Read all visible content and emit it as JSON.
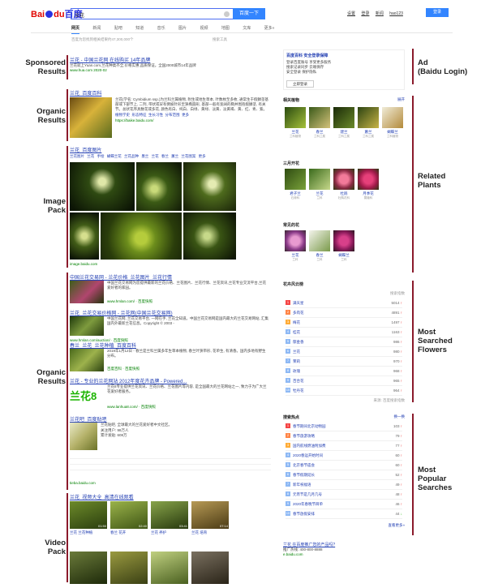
{
  "annotations": {
    "left": [
      "Sponsored\nResults",
      "Organic\nResults",
      "Image\nPack",
      "Organic\nResults",
      "Video\nPack"
    ],
    "right": [
      "Ad\n(Baidu Login)",
      "Related\nPlants",
      "Most\nSearched\nFlowers",
      "Most\nPopular\nSearches"
    ]
  },
  "header": {
    "logo_bai": "Bai",
    "logo_du": "du",
    "logo_cn": "百度",
    "query": "兰花",
    "search_button": "百度一下",
    "top_links": [
      "设置",
      "登录",
      "新闻",
      "hao123"
    ],
    "login": "登录"
  },
  "tabs": [
    "网页",
    "新闻",
    "贴吧",
    "知道",
    "音乐",
    "图片",
    "视频",
    "地图",
    "文库",
    "更多»"
  ],
  "stats": "百度为您找到相关结果约47,300,000个",
  "tools": "搜索工具",
  "sponsored": {
    "title": "兰花 - 中国兰花网 在线购买 14年品牌",
    "snippet": "兰花就上Yuan.com,兰花种类齐全,价格实惠,品质保证。全国2000城市14年品牌",
    "url": "www.hua.com  2020-02"
  },
  "organic1": {
    "title": "兰花_百度百科",
    "snippet": "兰花(学名: Cymbidium ssp.)为兰科兰属植物, 附生或地生草本, 叶数枚至多枚, 通常生于假鳞茎基部或下部节上, 二列, 带状或罕有倒披针形至狭椭圆形, 基部一般有宽阔的鞘并围抱假鳞茎, 有关节。总状花序具数花或多花, 颜色有白、纯白、白绿、黄绿、淡黄、淡黄褐、黄、红、青、紫。",
    "sublinks": [
      "植物学史",
      "形态特征",
      "生长习性",
      "分布范围",
      "更多"
    ],
    "url": "https://baike.baidu.com/"
  },
  "images": {
    "title": "兰花_百度图片",
    "tags": [
      "兰花图片",
      "兰花 手绘",
      "蝴蝶兰花",
      "兰花品种",
      "墨兰",
      "兰花",
      "春兰",
      "蕙兰",
      "兰花图案",
      "更多"
    ],
    "source": "image.baidu.com"
  },
  "organic2": [
    {
      "title": "中国兰花交易网 - 兰花价格_兰花图片_兰花行情",
      "snippet": "中国兰花交易网为您提供最新的兰花价格、兰花图片、兰花行情、兰花资讯,兰花专业交流平台,兰花爱好者的家园。",
      "url": "www.hmlan.com/  ·  百度快照"
    },
    {
      "title": "兰花_兰花交易价格网 - 兰花网(中国兰花交易网)",
      "snippet": "中国兰花网, 兰花交易平台, 一网在手, 兰花全知道。中国兰花交易网是国内最大的兰花交易网站, 汇集国内外最新兰花信息。Copyright © 2003 -",
      "url": "www.hmlan.com/auction/  ·  百度快照"
    },
    {
      "title": "春兰_兰花_兰花种植_百度百科",
      "snippet": "2019年1月12日 - 春兰是兰科兰属多年生草本植物, 春兰叶狭带形, 花单生, 有清香。国内多地有野生分布。",
      "url": "百度百科  ·  百度快照"
    },
    {
      "title": "兰花 - 专业的兰花网站 2012年度花卉品牌 - Powered...",
      "snippet": "兰花8专业提供兰花资讯、兰花价格、兰花图片等内容, 是全国最大的兰花网站之一, 致力于为广大兰花爱好者服务。",
      "url": "www.lanhua8.com/  ·  百度快照",
      "logo": "兰花8"
    },
    {
      "title": "兰花吧_百度贴吧",
      "snippet": "兰花贴吧, 全球最大的兰花爱好者中文社区。",
      "stats": [
        "关注用户: 98万人",
        "累计发贴: 608万"
      ],
      "url": "tieba.baidu.com"
    }
  ],
  "video": {
    "title": "兰花_视频大全_高清在线观看",
    "items": [
      "兰花 兰花种植",
      "春兰 花开",
      "兰花 养护",
      "兰花 培育"
    ],
    "durations": [
      "01:50",
      "02:40",
      "03:41",
      "07:14"
    ]
  },
  "ad": {
    "title": "百度百科 安全登录保障",
    "lines": [
      "登录百度账号 享受更多服务",
      "搜索记录同步 云端保存",
      "安全登录 保护隐私"
    ],
    "button": "立即登录"
  },
  "related": {
    "title": "相关植物",
    "more": "展开",
    "plants": [
      {
        "name": "兰花",
        "desc": "兰科植物"
      },
      {
        "name": "春兰",
        "desc": "兰科兰属"
      },
      {
        "name": "建兰",
        "desc": "兰科兰属"
      },
      {
        "name": "蕙兰",
        "desc": "兰科兰属"
      },
      {
        "name": "蝴蝶兰",
        "desc": "兰科植物"
      }
    ],
    "title2": "三月开花",
    "plants2": [
      {
        "name": "君子兰",
        "desc": "石蒜科"
      },
      {
        "name": "兰花",
        "desc": "兰科"
      },
      {
        "name": "杜鹃",
        "desc": "杜鹃花科"
      },
      {
        "name": "月季花",
        "desc": "蔷薇科"
      }
    ],
    "title3": "常见的花",
    "plants3": [
      {
        "name": "兰花",
        "desc": "兰科"
      },
      {
        "name": "春兰",
        "desc": "兰科"
      },
      {
        "name": "蝴蝶兰",
        "desc": "兰科"
      }
    ]
  },
  "flowers": {
    "title": "花卉风云榜",
    "col": "搜索指数",
    "rows": [
      {
        "name": "满天星",
        "val": "5014",
        "trend": "up"
      },
      {
        "name": "多肉花",
        "val": "4891",
        "trend": "up"
      },
      {
        "name": "梅花",
        "val": "1497",
        "trend": "up"
      },
      {
        "name": "桂花",
        "val": "1163",
        "trend": "up"
      },
      {
        "name": "郁金香",
        "val": "986",
        "trend": "up"
      },
      {
        "name": "兰花",
        "val": "980",
        "trend": "up"
      },
      {
        "name": "茉莉",
        "val": "970",
        "trend": "up"
      },
      {
        "name": "玫瑰",
        "val": "968",
        "trend": "up"
      },
      {
        "name": "百合花",
        "val": "965",
        "trend": "up"
      },
      {
        "name": "牡丹花",
        "val": "964",
        "trend": "up"
      }
    ],
    "footer": "来源: 百度搜索指数"
  },
  "popular": {
    "title": "搜索热点",
    "more": "换一换",
    "rows": [
      {
        "name": "春节期间北京动物园",
        "val": "103",
        "trend": "up"
      },
      {
        "name": "春节旅游攻略",
        "val": "79",
        "trend": "up"
      },
      {
        "name": "国内航线燃油附加费",
        "val": "77",
        "trend": "up"
      },
      {
        "name": "2020春运开始时间",
        "val": "60",
        "trend": "up"
      },
      {
        "name": "北京春节庙会",
        "val": "60",
        "trend": "up"
      },
      {
        "name": "春节假期延长",
        "val": "52",
        "trend": "up"
      },
      {
        "name": "新年祝福语",
        "val": "49",
        "trend": "up"
      },
      {
        "name": "元宵节是几月几号",
        "val": "48",
        "trend": "up"
      },
      {
        "name": "2020年春晚节目单",
        "val": "46",
        "trend": "up"
      },
      {
        "name": "春节放假安排",
        "val": "44",
        "trend": "dn"
      }
    ],
    "footer": "查看更多»"
  },
  "bottom_ad": {
    "title": "兰花 在百度推广您的产品吗?",
    "line": "推广热线: 400-800-8888",
    "url": "e.baidu.com"
  }
}
